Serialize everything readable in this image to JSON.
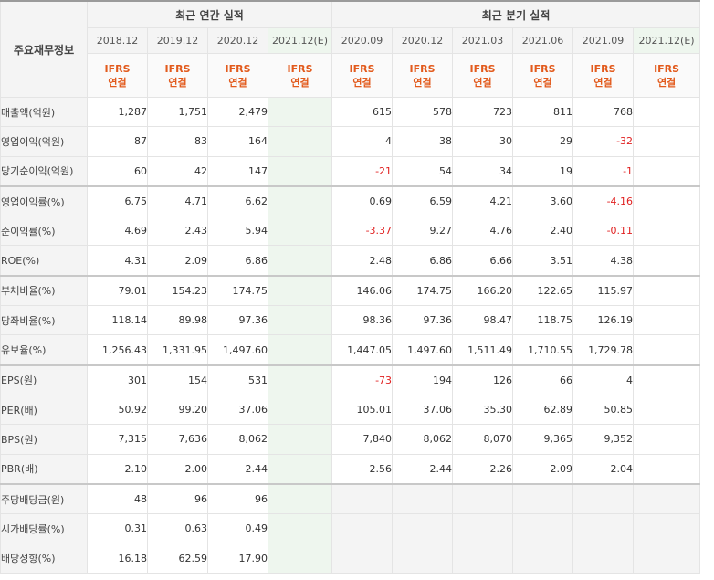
{
  "header": {
    "corner_label": "주요재무정보",
    "annual_group": "최근 연간 실적",
    "quarter_group": "최근 분기 실적",
    "annual_periods": [
      "2018.12",
      "2019.12",
      "2020.12",
      "2021.12(E)"
    ],
    "quarter_periods": [
      "2020.09",
      "2020.12",
      "2021.03",
      "2021.06",
      "2021.09",
      "2021.12(E)"
    ],
    "ifrs_top": "IFRS",
    "ifrs_bottom": "연결"
  },
  "colors": {
    "ifrs_text": "#e25a1c",
    "negative": "#e02020",
    "estimate_column_bg": "#eef6ee"
  },
  "rows": [
    {
      "label": "매출액(억원)",
      "annual": [
        "1,287",
        "1,751",
        "2,479",
        ""
      ],
      "quarter": [
        "615",
        "578",
        "723",
        "811",
        "768",
        ""
      ]
    },
    {
      "label": "영업이익(억원)",
      "annual": [
        "87",
        "83",
        "164",
        ""
      ],
      "quarter": [
        "4",
        "38",
        "30",
        "29",
        "-32",
        ""
      ]
    },
    {
      "label": "당기순이익(억원)",
      "annual": [
        "60",
        "42",
        "147",
        ""
      ],
      "quarter": [
        "-21",
        "54",
        "34",
        "19",
        "-1",
        ""
      ]
    },
    {
      "label": "영업이익률(%)",
      "annual": [
        "6.75",
        "4.71",
        "6.62",
        ""
      ],
      "quarter": [
        "0.69",
        "6.59",
        "4.21",
        "3.60",
        "-4.16",
        ""
      ]
    },
    {
      "label": "순이익률(%)",
      "annual": [
        "4.69",
        "2.43",
        "5.94",
        ""
      ],
      "quarter": [
        "-3.37",
        "9.27",
        "4.76",
        "2.40",
        "-0.11",
        ""
      ]
    },
    {
      "label": "ROE(%)",
      "annual": [
        "4.31",
        "2.09",
        "6.86",
        ""
      ],
      "quarter": [
        "2.48",
        "6.86",
        "6.66",
        "3.51",
        "4.38",
        ""
      ]
    },
    {
      "label": "부채비율(%)",
      "annual": [
        "79.01",
        "154.23",
        "174.75",
        ""
      ],
      "quarter": [
        "146.06",
        "174.75",
        "166.20",
        "122.65",
        "115.97",
        ""
      ]
    },
    {
      "label": "당좌비율(%)",
      "annual": [
        "118.14",
        "89.98",
        "97.36",
        ""
      ],
      "quarter": [
        "98.36",
        "97.36",
        "98.47",
        "118.75",
        "126.19",
        ""
      ]
    },
    {
      "label": "유보율(%)",
      "annual": [
        "1,256.43",
        "1,331.95",
        "1,497.60",
        ""
      ],
      "quarter": [
        "1,447.05",
        "1,497.60",
        "1,511.49",
        "1,710.55",
        "1,729.78",
        ""
      ]
    },
    {
      "label": "EPS(원)",
      "annual": [
        "301",
        "154",
        "531",
        ""
      ],
      "quarter": [
        "-73",
        "194",
        "126",
        "66",
        "4",
        ""
      ]
    },
    {
      "label": "PER(배)",
      "annual": [
        "50.92",
        "99.20",
        "37.06",
        ""
      ],
      "quarter": [
        "105.01",
        "37.06",
        "35.30",
        "62.89",
        "50.85",
        ""
      ]
    },
    {
      "label": "BPS(원)",
      "annual": [
        "7,315",
        "7,636",
        "8,062",
        ""
      ],
      "quarter": [
        "7,840",
        "8,062",
        "8,070",
        "9,365",
        "9,352",
        ""
      ]
    },
    {
      "label": "PBR(배)",
      "annual": [
        "2.10",
        "2.00",
        "2.44",
        ""
      ],
      "quarter": [
        "2.56",
        "2.44",
        "2.26",
        "2.09",
        "2.04",
        ""
      ]
    },
    {
      "label": "주당배당금(원)",
      "annual": [
        "48",
        "96",
        "96",
        ""
      ],
      "quarter": null
    },
    {
      "label": "시가배당률(%)",
      "annual": [
        "0.31",
        "0.63",
        "0.49",
        ""
      ],
      "quarter": null
    },
    {
      "label": "배당성향(%)",
      "annual": [
        "16.18",
        "62.59",
        "17.90",
        ""
      ],
      "quarter": null
    }
  ]
}
